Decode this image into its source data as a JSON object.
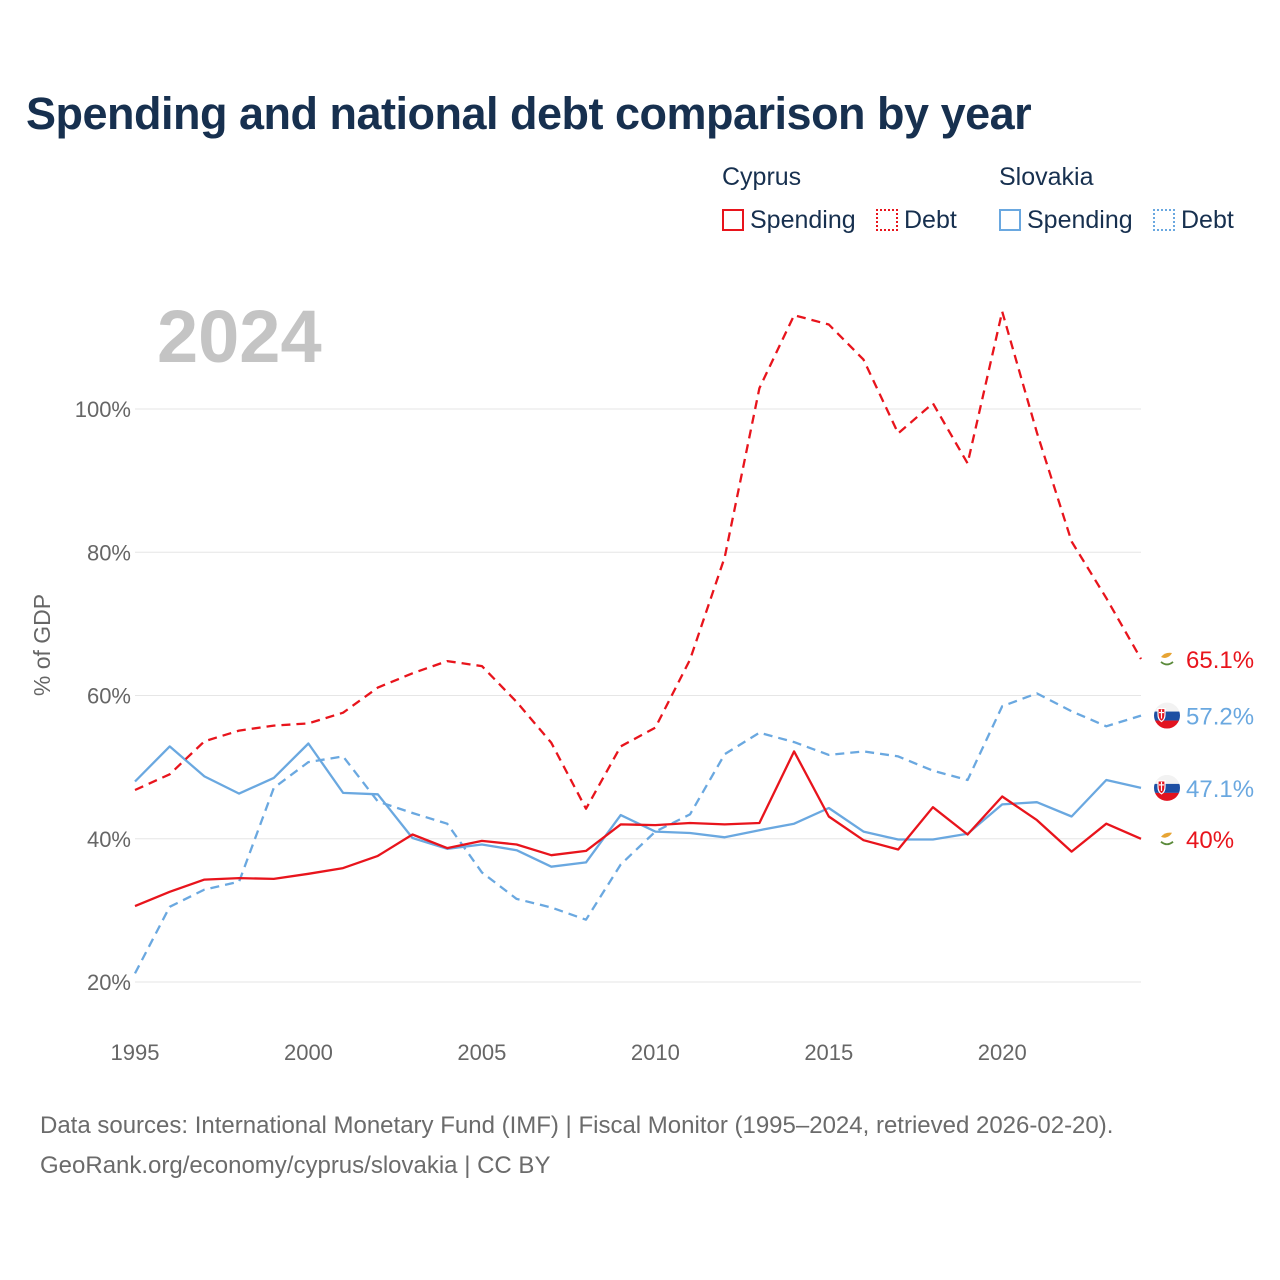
{
  "chart_data": {
    "type": "line",
    "title": "Spending and national debt comparison by year",
    "year_label": "2024",
    "ylabel": "% of GDP",
    "xlabel": "",
    "xlim": [
      1995,
      2024
    ],
    "ylim": [
      20,
      115
    ],
    "x_ticks": [
      1995,
      2000,
      2005,
      2010,
      2015,
      2020
    ],
    "x_tick_labels": [
      "1995",
      "2000",
      "2005",
      "2010",
      "2015",
      "2020"
    ],
    "y_ticks": [
      20,
      40,
      60,
      80,
      100
    ],
    "y_tick_labels": [
      "20%",
      "40%",
      "60%",
      "80%",
      "100%"
    ],
    "grid": true,
    "legend": {
      "groups": [
        {
          "country": "Cyprus",
          "items": [
            "Spending",
            "Debt"
          ]
        },
        {
          "country": "Slovakia",
          "items": [
            "Spending",
            "Debt"
          ]
        }
      ],
      "placement": "top-right"
    },
    "colors": {
      "cyprus": "#e8141c",
      "slovakia": "#6aa8e0"
    },
    "x": [
      1995,
      1996,
      1997,
      1998,
      1999,
      2000,
      2001,
      2002,
      2003,
      2004,
      2005,
      2006,
      2007,
      2008,
      2009,
      2010,
      2011,
      2012,
      2013,
      2014,
      2015,
      2016,
      2017,
      2018,
      2019,
      2020,
      2021,
      2022,
      2023,
      2024
    ],
    "series": [
      {
        "name": "Cyprus Spending",
        "country": "Cyprus",
        "measure": "Spending",
        "style": "solid",
        "color": "#e8141c",
        "end_label": "40%",
        "values": [
          30.6,
          32.6,
          34.3,
          34.5,
          34.4,
          35.1,
          35.9,
          37.6,
          40.6,
          38.7,
          39.7,
          39.2,
          37.7,
          38.3,
          42.0,
          41.9,
          42.2,
          42.0,
          42.2,
          52.2,
          43.1,
          39.8,
          38.5,
          44.4,
          40.6,
          45.9,
          42.6,
          38.2,
          42.1,
          40.0
        ]
      },
      {
        "name": "Cyprus Debt",
        "country": "Cyprus",
        "measure": "Debt",
        "style": "dashed",
        "color": "#e8141c",
        "end_label": "65.1%",
        "values": [
          46.8,
          49.0,
          53.6,
          55.1,
          55.8,
          56.1,
          57.6,
          61.1,
          63.1,
          64.8,
          64.1,
          59.1,
          53.4,
          44.2,
          52.9,
          55.5,
          65.0,
          79.3,
          102.9,
          113.1,
          111.8,
          106.9,
          96.6,
          100.8,
          92.4,
          113.6,
          96.7,
          81.5,
          73.6,
          65.1
        ]
      },
      {
        "name": "Slovakia Spending",
        "country": "Slovakia",
        "measure": "Spending",
        "style": "solid",
        "color": "#6aa8e0",
        "end_label": "47.1%",
        "values": [
          48.0,
          52.9,
          48.7,
          46.3,
          48.5,
          53.3,
          46.4,
          46.2,
          40.1,
          38.6,
          39.2,
          38.4,
          36.1,
          36.7,
          43.3,
          41.0,
          40.8,
          40.2,
          41.2,
          42.1,
          44.3,
          41.0,
          39.9,
          39.9,
          40.7,
          44.8,
          45.1,
          43.1,
          48.2,
          47.1
        ]
      },
      {
        "name": "Slovakia Debt",
        "country": "Slovakia",
        "measure": "Debt",
        "style": "dashed",
        "color": "#6aa8e0",
        "end_label": "57.2%",
        "values": [
          21.2,
          30.5,
          32.9,
          34.0,
          47.1,
          50.7,
          51.5,
          45.2,
          43.6,
          42.1,
          35.3,
          31.6,
          30.4,
          28.7,
          36.4,
          41.0,
          43.4,
          51.8,
          54.8,
          53.5,
          51.7,
          52.2,
          51.5,
          49.5,
          48.2,
          58.5,
          60.3,
          57.8,
          55.7,
          57.2
        ]
      }
    ]
  },
  "legend_labels": {
    "cyprus": "Cyprus",
    "slovakia": "Slovakia",
    "spending": "Spending",
    "debt": "Debt"
  },
  "source": {
    "line1": "Data sources: International Monetary Fund (IMF) | Fiscal Monitor (1995–2024, retrieved 2026-02-20).",
    "line2": "GeoRank.org/economy/cyprus/slovakia | CC BY"
  }
}
